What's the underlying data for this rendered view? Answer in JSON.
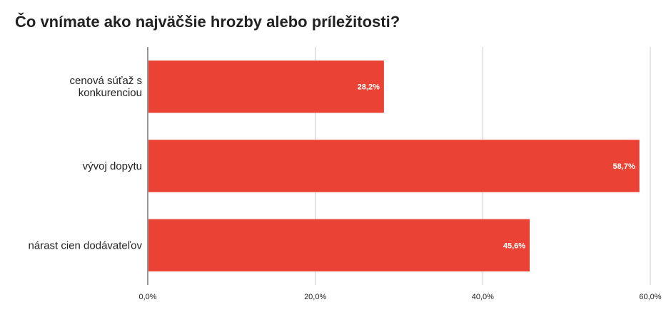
{
  "chart_data": {
    "type": "bar",
    "orientation": "horizontal",
    "title": "Čo vnímate ako najväčšie hrozby alebo príležitosti?",
    "categories": [
      [
        "cenová súťaž s",
        "konkurenciou"
      ],
      [
        "vývoj dopytu"
      ],
      [
        "nárast cien dodávateľov"
      ]
    ],
    "values": [
      28.2,
      58.7,
      45.6
    ],
    "data_labels": [
      "28,2%",
      "58,7%",
      "45,6%"
    ],
    "xlim": [
      0,
      60
    ],
    "x_ticks": [
      0,
      20,
      40,
      60
    ],
    "x_tick_labels": [
      "0,0%",
      "20,0%",
      "40,0%",
      "60,0%"
    ],
    "bar_color": "#ea4335",
    "grid": true
  }
}
